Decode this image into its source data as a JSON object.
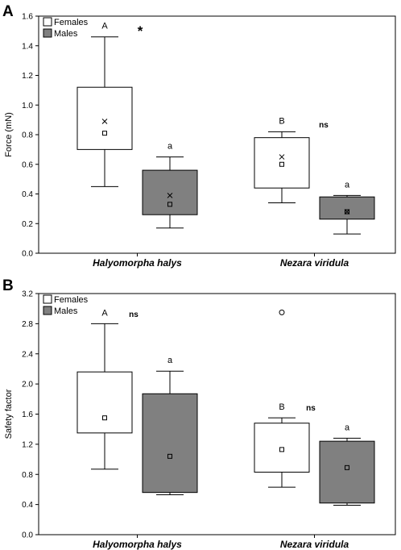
{
  "chart_data": [
    {
      "panel": "A",
      "type": "box",
      "title": "",
      "ylabel": "Force (mN)",
      "xlabel": "",
      "ylim": [
        0,
        1.6
      ],
      "yticks": [
        "0.0",
        "0.2",
        "0.4",
        "0.6",
        "0.8",
        "1.0",
        "1.2",
        "1.4",
        "1.6"
      ],
      "categories": [
        "Halyomorpha halys",
        "Nezara viridula"
      ],
      "legend": {
        "position": "top-left",
        "entries": [
          "Females",
          "Males"
        ]
      },
      "colors": {
        "Females": "#ffffff",
        "Males": "#808080"
      },
      "series": [
        {
          "name": "Females",
          "boxes": [
            {
              "whisker_low": 0.45,
              "q1": 0.7,
              "q3": 1.12,
              "whisker_high": 1.46,
              "median": 0.81,
              "mean": 0.89,
              "letter": "A"
            },
            {
              "whisker_low": 0.34,
              "q1": 0.44,
              "q3": 0.78,
              "whisker_high": 0.82,
              "median": 0.6,
              "mean": 0.65,
              "letter": "B"
            }
          ]
        },
        {
          "name": "Males",
          "boxes": [
            {
              "whisker_low": 0.17,
              "q1": 0.26,
              "q3": 0.56,
              "whisker_high": 0.65,
              "median": 0.33,
              "mean": 0.39,
              "letter": "a"
            },
            {
              "whisker_low": 0.13,
              "q1": 0.23,
              "q3": 0.38,
              "whisker_high": 0.39,
              "median": 0.28,
              "mean": 0.28,
              "letter": "a"
            }
          ]
        }
      ],
      "significance": [
        "*",
        "ns"
      ]
    },
    {
      "panel": "B",
      "type": "box",
      "title": "",
      "ylabel": "Safety factor",
      "xlabel": "",
      "ylim": [
        0,
        3.2
      ],
      "yticks": [
        "0.0",
        "0.4",
        "0.8",
        "1.2",
        "1.6",
        "2.0",
        "2.4",
        "2.8",
        "3.2"
      ],
      "categories": [
        "Halyomorpha halys",
        "Nezara viridula"
      ],
      "legend": {
        "position": "top-left",
        "entries": [
          "Females",
          "Males"
        ]
      },
      "colors": {
        "Females": "#ffffff",
        "Males": "#808080"
      },
      "series": [
        {
          "name": "Females",
          "boxes": [
            {
              "whisker_low": 0.87,
              "q1": 1.35,
              "q3": 2.16,
              "whisker_high": 2.8,
              "median": 1.55,
              "letter": "A"
            },
            {
              "whisker_low": 0.63,
              "q1": 0.83,
              "q3": 1.48,
              "whisker_high": 1.55,
              "median": 1.13,
              "outlier": 2.95,
              "letter": "B"
            }
          ]
        },
        {
          "name": "Males",
          "boxes": [
            {
              "whisker_low": 0.53,
              "q1": 0.56,
              "q3": 1.87,
              "whisker_high": 2.17,
              "median": 1.04,
              "letter": "a"
            },
            {
              "whisker_low": 0.39,
              "q1": 0.42,
              "q3": 1.24,
              "whisker_high": 1.28,
              "median": 0.89,
              "letter": "a"
            }
          ]
        }
      ],
      "significance": [
        "ns",
        "ns"
      ]
    }
  ]
}
